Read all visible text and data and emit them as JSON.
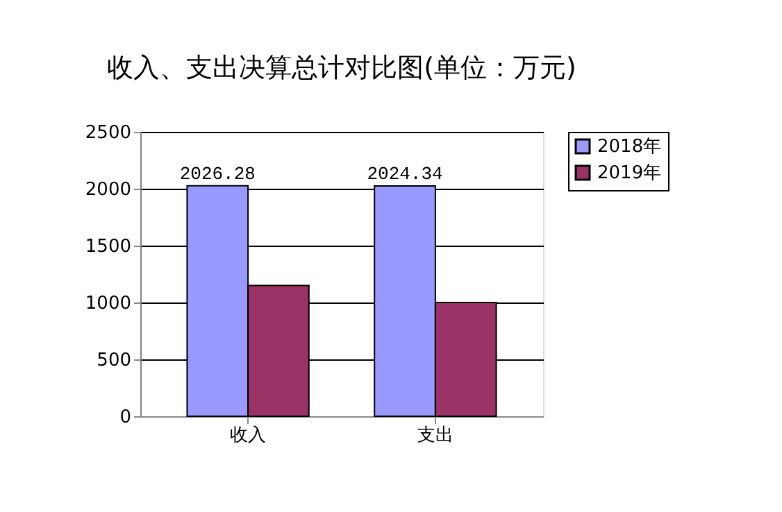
{
  "chart_data": {
    "type": "bar",
    "title": "收入、支出决算总计对比图(单位：万元)",
    "categories": [
      "收入",
      "支出"
    ],
    "series": [
      {
        "name": "2018年",
        "color": "#9999ff",
        "values": [
          2026.28,
          2024.34
        ],
        "value_labels": [
          "2026.28",
          "2024.34"
        ]
      },
      {
        "name": "2019年",
        "color": "#993366",
        "values": [
          1150,
          1000
        ],
        "value_labels": [
          null,
          null
        ]
      }
    ],
    "ylim": [
      0,
      2500
    ],
    "yticks": [
      0,
      500,
      1000,
      1500,
      2000,
      2500
    ],
    "grid": "y",
    "legend": "right"
  }
}
